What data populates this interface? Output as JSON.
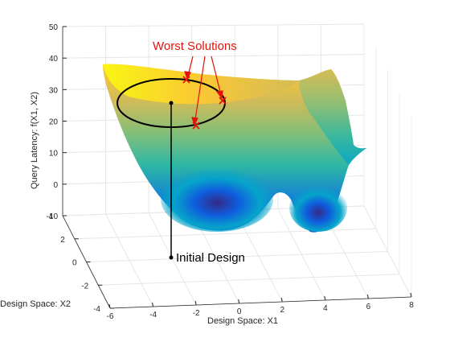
{
  "chart_data": {
    "type": "surface",
    "zlabel": "Query Latency: f(X1, X2)",
    "xlabel": "Design Space: X1",
    "ylabel": "Design Space: X2",
    "x_ticks": [
      "-6",
      "-4",
      "-2",
      "0",
      "2",
      "4",
      "6",
      "8"
    ],
    "y_ticks": [
      "-4",
      "-2",
      "0",
      "2",
      "4"
    ],
    "z_ticks": [
      "-10",
      "0",
      "10",
      "20",
      "30",
      "40",
      "50"
    ],
    "xlim": [
      -6,
      8
    ],
    "ylim": [
      -4,
      4
    ],
    "zlim": [
      -10,
      50
    ],
    "grid": true,
    "colormap": [
      "#352a87",
      "#0f5cdd",
      "#1481d6",
      "#06a4ca",
      "#2eb7a4",
      "#87bf77",
      "#d1bb59",
      "#fec832",
      "#f9fb0e"
    ],
    "annotations": {
      "worst": {
        "text": "Worst Solutions",
        "color": "#e3120b",
        "marker": "x"
      },
      "initial": {
        "text": "Initial Design",
        "color": "#000000",
        "marker": "dot"
      }
    }
  }
}
